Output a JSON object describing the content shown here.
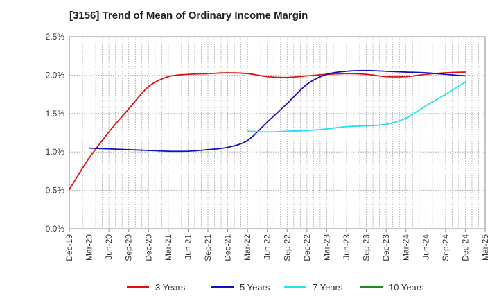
{
  "chart_data": {
    "type": "line",
    "title": "[3156]  Trend of Mean of Ordinary Income Margin",
    "x_ticks": [
      "Dec-19",
      "Mar-20",
      "Jun-20",
      "Sep-20",
      "Dec-20",
      "Mar-21",
      "Jun-21",
      "Sep-21",
      "Dec-21",
      "Mar-22",
      "Jun-22",
      "Sep-22",
      "Dec-22",
      "Mar-23",
      "Jun-23",
      "Sep-23",
      "Dec-23",
      "Mar-24",
      "Jun-24",
      "Sep-24",
      "Dec-24",
      "Mar-25"
    ],
    "y_ticks": [
      "0.0%",
      "0.5%",
      "1.0%",
      "1.5%",
      "2.0%",
      "2.5%"
    ],
    "ylim": [
      0,
      2.5
    ],
    "grid": true,
    "legend_position": "bottom",
    "series": [
      {
        "name": "3 Years",
        "color": "#dd1111",
        "x": [
          "Dec-19",
          "Mar-20",
          "Jun-20",
          "Sep-20",
          "Dec-20",
          "Mar-21",
          "Jun-21",
          "Sep-21",
          "Dec-21",
          "Mar-22",
          "Jun-22",
          "Sep-22",
          "Dec-22",
          "Mar-23",
          "Jun-23",
          "Sep-23",
          "Dec-23",
          "Mar-24",
          "Jun-24",
          "Sep-24",
          "Dec-24"
        ],
        "values": [
          0.51,
          0.92,
          1.26,
          1.56,
          1.85,
          1.98,
          2.01,
          2.02,
          2.03,
          2.02,
          1.98,
          1.97,
          1.99,
          2.01,
          2.02,
          2.01,
          1.98,
          1.98,
          2.01,
          2.03,
          2.04
        ]
      },
      {
        "name": "5 Years",
        "color": "#1111bb",
        "x": [
          "Dec-19",
          "Mar-20",
          "Jun-20",
          "Sep-20",
          "Dec-20",
          "Mar-21",
          "Jun-21",
          "Sep-21",
          "Dec-21",
          "Mar-22",
          "Jun-22",
          "Sep-22",
          "Dec-22",
          "Mar-23",
          "Jun-23",
          "Sep-23",
          "Dec-23",
          "Mar-24",
          "Jun-24",
          "Sep-24",
          "Dec-24"
        ],
        "values": [
          null,
          1.05,
          1.04,
          1.03,
          1.02,
          1.01,
          1.01,
          1.03,
          1.06,
          1.15,
          1.39,
          1.63,
          1.88,
          2.01,
          2.05,
          2.06,
          2.05,
          2.04,
          2.03,
          2.01,
          1.99
        ]
      },
      {
        "name": "7 Years",
        "color": "#22e0ee",
        "x": [
          "Dec-19",
          "Mar-20",
          "Jun-20",
          "Sep-20",
          "Dec-20",
          "Mar-21",
          "Jun-21",
          "Sep-21",
          "Dec-21",
          "Mar-22",
          "Jun-22",
          "Sep-22",
          "Dec-22",
          "Mar-23",
          "Jun-23",
          "Sep-23",
          "Dec-23",
          "Mar-24",
          "Jun-24",
          "Sep-24",
          "Dec-24"
        ],
        "values": [
          null,
          null,
          null,
          null,
          null,
          null,
          null,
          null,
          null,
          1.27,
          1.26,
          1.27,
          1.28,
          1.3,
          1.33,
          1.34,
          1.36,
          1.44,
          1.6,
          1.75,
          1.91
        ]
      },
      {
        "name": "10 Years",
        "color": "#228822",
        "x": [],
        "values": []
      }
    ]
  }
}
